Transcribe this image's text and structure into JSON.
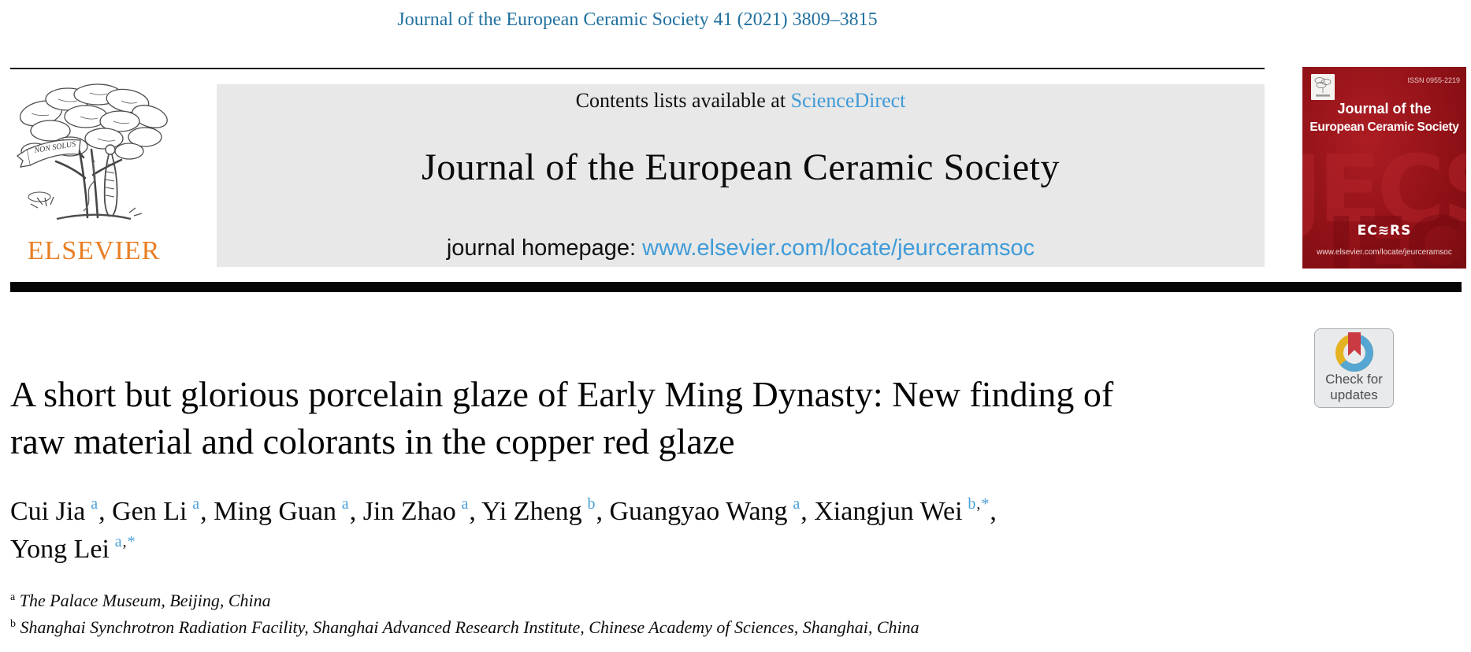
{
  "masthead": {
    "citation": "Journal of the European Ceramic Society 41 (2021) 3809–3815",
    "contents_prefix": "Contents lists available at ",
    "contents_link": "ScienceDirect",
    "journal_title": "Journal of the European Ceramic Society",
    "homepage_prefix": "journal homepage: ",
    "homepage_link": "www.elsevier.com/locate/jeurceramsoc"
  },
  "elsevier": {
    "wordmark": "ELSEVIER",
    "motto": "NON SOLUS"
  },
  "cover": {
    "issn": "ISSN 0955-2219",
    "title_line1": "Journal of the",
    "title_line2": "European Ceramic Society",
    "watermark": "JECS",
    "society_mark": "EC≋RS",
    "url": "www.elsevier.com/locate/jeurceramsoc"
  },
  "crossmark": {
    "line1": "Check for",
    "line2": "updates"
  },
  "article": {
    "title_line1": "A short but glorious porcelain glaze of Early Ming Dynasty: New finding of",
    "title_line2": "raw material and colorants in the copper red glaze",
    "authors": [
      {
        "name": "Cui Jia",
        "sup": "a",
        "after": ", "
      },
      {
        "name": "Gen Li",
        "sup": "a",
        "after": ", "
      },
      {
        "name": "Ming Guan",
        "sup": "a",
        "after": ", "
      },
      {
        "name": "Jin Zhao",
        "sup": "a",
        "after": ", "
      },
      {
        "name": "Yi Zheng",
        "sup": "b",
        "after": ", "
      },
      {
        "name": "Guangyao Wang",
        "sup": "a",
        "after": ", "
      },
      {
        "name": "Xiangjun Wei",
        "sup": "b,*",
        "after": ",",
        "break_after": true
      },
      {
        "name": "Yong Lei",
        "sup": "a,*",
        "after": ""
      }
    ],
    "affiliations": [
      {
        "sup": "a",
        "text": "The Palace Museum, Beijing, China"
      },
      {
        "sup": "b",
        "text": "Shanghai Synchrotron Radiation Facility, Shanghai Advanced Research Institute, Chinese Academy of Sciences, Shanghai, China"
      }
    ]
  },
  "colors": {
    "link_blue": "#3f9bd8",
    "citation_blue": "#21719f",
    "author_sup_blue": "#4aa0d8",
    "elsevier_orange": "#e87f24",
    "cover_red": "#921218",
    "banner_gray": "#e8e8e8",
    "crossmark_red": "#ca3a43",
    "crossmark_blue": "#56a6d4",
    "crossmark_yellow": "#e5b322"
  }
}
